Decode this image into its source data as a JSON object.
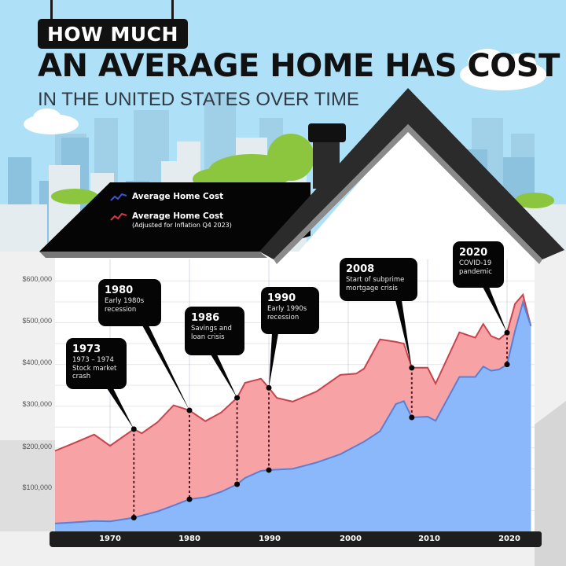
{
  "header": {
    "tag": "HOW MUCH",
    "title": "AN AVERAGE HOME HAS COST",
    "subtitle": "IN THE UNITED STATES OVER TIME"
  },
  "legend": {
    "items": [
      {
        "label": "Average Home Cost",
        "sublabel": "",
        "color": "#3b55c8",
        "icon": "zigzag-line-icon"
      },
      {
        "label": "Average Home Cost",
        "sublabel": "(Adjusted for Inflation Q4 2023)",
        "color": "#d23a48",
        "icon": "zigzag-line-icon"
      }
    ]
  },
  "callouts": [
    {
      "year": "1973",
      "desc1": "1973 – 1974",
      "desc2": "Stock market",
      "desc3": "crash"
    },
    {
      "year": "1980",
      "desc1": "Early 1980s",
      "desc2": "recession",
      "desc3": ""
    },
    {
      "year": "1986",
      "desc1": "Savings and",
      "desc2": "loan crisis",
      "desc3": ""
    },
    {
      "year": "1990",
      "desc1": "Early 1990s",
      "desc2": "recession",
      "desc3": ""
    },
    {
      "year": "2008",
      "desc1": "Start of subprime",
      "desc2": "mortgage crisis",
      "desc3": ""
    },
    {
      "year": "2020",
      "desc1": "COVID-19",
      "desc2": "pandemic",
      "desc3": ""
    }
  ],
  "axes": {
    "y_ticks": [
      "$600,000",
      "$500,000",
      "$400,000",
      "$300,000",
      "$200,000",
      "$100,000"
    ],
    "x_ticks": [
      "1970",
      "1980",
      "1990",
      "2000",
      "2010",
      "2020"
    ]
  },
  "colors": {
    "sky": "#aee0f7",
    "nominal_fill": "#8ab8fb",
    "nominal_line": "#5a7fd6",
    "real_fill": "#f7a3a5",
    "real_line": "#c9434d",
    "roof": "#2b2b2b",
    "bush": "#8cc63f"
  },
  "chart_data": {
    "type": "area",
    "title": "How Much An Average Home Has Cost In The United States Over Time",
    "xlabel": "",
    "ylabel": "",
    "ylim": [
      0,
      600000
    ],
    "xlim": [
      1963,
      2024
    ],
    "grid": true,
    "legend_position": "top-left",
    "x": [
      1963,
      1965,
      1968,
      1970,
      1973,
      1974,
      1976,
      1978,
      1980,
      1982,
      1984,
      1986,
      1987,
      1989,
      1990,
      1991,
      1993,
      1996,
      1999,
      2001,
      2002,
      2004,
      2006,
      2007,
      2008,
      2010,
      2011,
      2014,
      2016,
      2017,
      2018,
      2019,
      2020,
      2021,
      2022,
      2023
    ],
    "series": [
      {
        "name": "Average Home Cost",
        "values": [
          19000,
          21000,
          25000,
          24000,
          33000,
          38000,
          48000,
          62000,
          77000,
          82000,
          95000,
          113000,
          128000,
          145000,
          147000,
          148000,
          150000,
          165000,
          185000,
          205000,
          215000,
          240000,
          305000,
          312000,
          273000,
          275000,
          265000,
          370000,
          370000,
          395000,
          385000,
          388000,
          400000,
          480000,
          549000,
          492000
        ]
      },
      {
        "name": "Average Home Cost (Adjusted for Inflation Q4 2023)",
        "values": [
          193000,
          208000,
          232000,
          205000,
          245000,
          235000,
          262000,
          302000,
          290000,
          264000,
          285000,
          320000,
          356000,
          366000,
          344000,
          320000,
          311000,
          335000,
          375000,
          378000,
          390000,
          460000,
          454000,
          450000,
          392000,
          392000,
          354000,
          477000,
          464000,
          497000,
          468000,
          460000,
          476000,
          545000,
          567000,
          492000
        ]
      }
    ],
    "annotations": [
      {
        "year": 1973,
        "label": "1973 – 1974 Stock market crash"
      },
      {
        "year": 1980,
        "label": "Early 1980s recession"
      },
      {
        "year": 1986,
        "label": "Savings and loan crisis"
      },
      {
        "year": 1990,
        "label": "Early 1990s recession"
      },
      {
        "year": 2008,
        "label": "Start of subprime mortgage crisis"
      },
      {
        "year": 2020,
        "label": "COVID-19 pandemic"
      }
    ]
  }
}
